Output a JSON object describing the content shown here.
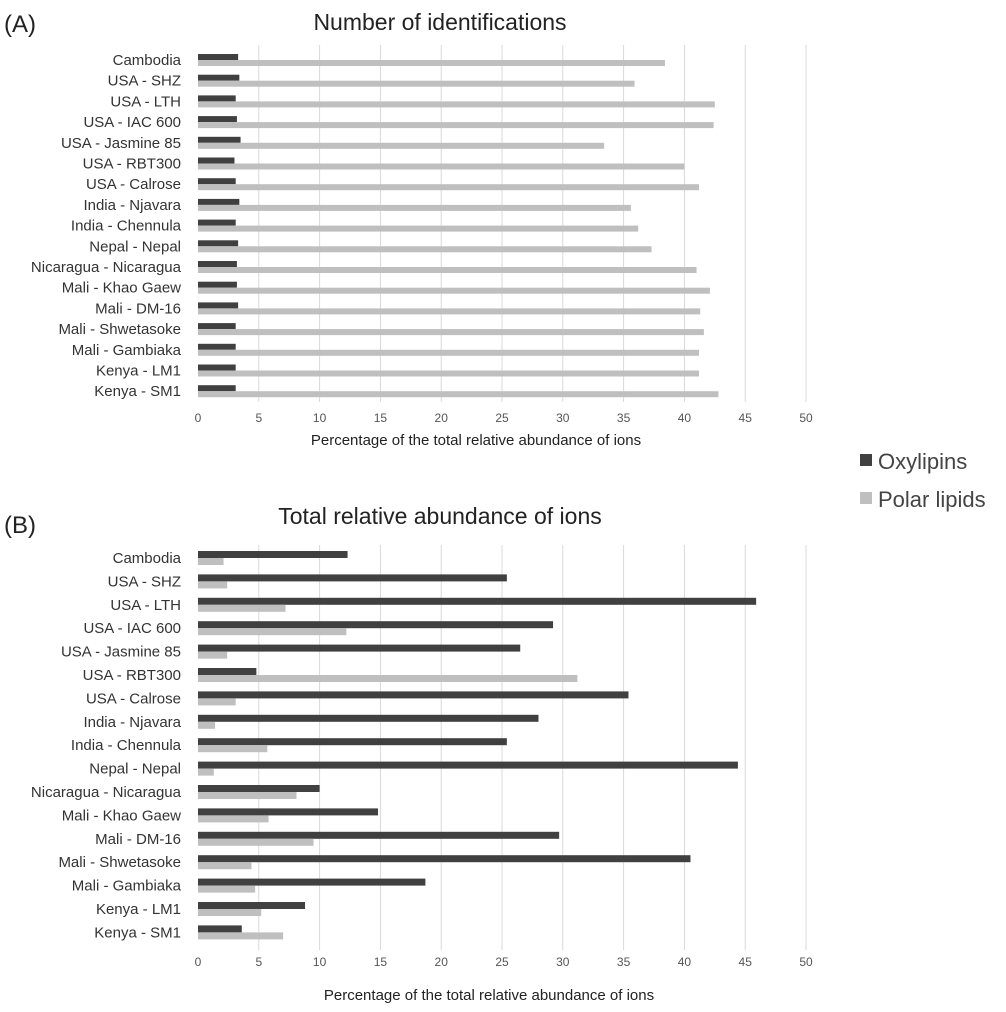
{
  "legend": [
    {
      "name": "Oxylipins",
      "color": "#404040"
    },
    {
      "name": "Polar lipids",
      "color": "#bfbfbf"
    }
  ],
  "chart_data": [
    {
      "type": "bar",
      "orientation": "horizontal",
      "panel_label": "(A)",
      "title": "Number of identifications",
      "xlabel": "Percentage of the total relative abundance of ions",
      "xlim": [
        0,
        50
      ],
      "xticks": [
        "0",
        "5",
        "10",
        "15",
        "20",
        "25",
        "30",
        "35",
        "40",
        "45",
        "50"
      ],
      "categories": [
        "Cambodia",
        "USA - SHZ",
        "USA - LTH",
        "USA - IAC 600",
        "USA - Jasmine 85",
        "USA - RBT300",
        "USA - Calrose",
        "India - Njavara",
        "India - Chennula",
        "Nepal - Nepal",
        "Nicaragua - Nicaragua",
        "Mali - Khao Gaew",
        "Mali - DM-16",
        "Mali - Shwetasoke",
        "Mali - Gambiaka",
        "Kenya - LM1",
        "Kenya - SM1"
      ],
      "series": [
        {
          "name": "Oxylipins",
          "values": [
            3.3,
            3.4,
            3.1,
            3.2,
            3.5,
            3.0,
            3.1,
            3.4,
            3.1,
            3.3,
            3.2,
            3.2,
            3.3,
            3.1,
            3.1,
            3.1,
            3.1
          ]
        },
        {
          "name": "Polar lipids",
          "values": [
            38.4,
            35.9,
            42.5,
            42.4,
            33.4,
            40.0,
            41.2,
            35.6,
            36.2,
            37.3,
            41.0,
            42.1,
            41.3,
            41.6,
            41.2,
            41.2,
            42.8
          ]
        }
      ],
      "grid": true
    },
    {
      "type": "bar",
      "orientation": "horizontal",
      "panel_label": "(B)",
      "title": "Total relative abundance of ions",
      "xlabel": "Percentage of the total relative abundance of ions",
      "xlim": [
        0,
        50
      ],
      "xticks": [
        "0",
        "5",
        "10",
        "15",
        "20",
        "25",
        "30",
        "35",
        "40",
        "45",
        "50"
      ],
      "categories": [
        "Cambodia",
        "USA - SHZ",
        "USA - LTH",
        "USA - IAC 600",
        "USA - Jasmine 85",
        "USA - RBT300",
        "USA - Calrose",
        "India - Njavara",
        "India - Chennula",
        "Nepal - Nepal",
        "Nicaragua - Nicaragua",
        "Mali - Khao Gaew",
        "Mali - DM-16",
        "Mali - Shwetasoke",
        "Mali - Gambiaka",
        "Kenya - LM1",
        "Kenya - SM1"
      ],
      "series": [
        {
          "name": "Oxylipins",
          "values": [
            12.3,
            25.4,
            45.9,
            29.2,
            26.5,
            4.8,
            35.4,
            28.0,
            25.4,
            44.4,
            10.0,
            14.8,
            29.7,
            40.5,
            18.7,
            8.8,
            3.6
          ]
        },
        {
          "name": "Polar lipids",
          "values": [
            2.1,
            2.4,
            7.2,
            12.2,
            2.4,
            31.2,
            3.1,
            1.4,
            5.7,
            1.3,
            8.1,
            5.8,
            9.5,
            4.4,
            4.7,
            5.2,
            7.0
          ]
        }
      ],
      "grid": true
    }
  ]
}
